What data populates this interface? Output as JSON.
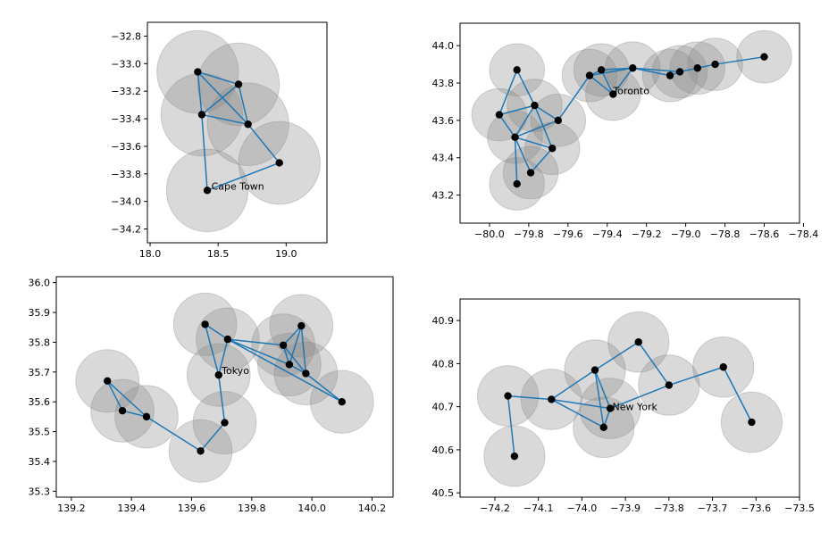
{
  "chart_data": [
    {
      "type": "scatter",
      "annotation": "Cape Town",
      "xticks": [
        "18.0",
        "18.5",
        "19.0"
      ],
      "yticks": [
        "−32.8",
        "−33.0",
        "−33.2",
        "−33.4",
        "−33.6",
        "−33.8",
        "−34.0",
        "−34.2"
      ],
      "xlim": [
        17.98,
        19.3
      ],
      "ylim": [
        -34.3,
        -32.7
      ],
      "xtick_values": [
        18.0,
        18.5,
        19.0
      ],
      "ytick_values": [
        -32.8,
        -33.0,
        -33.2,
        -33.4,
        -33.6,
        -33.8,
        -34.0,
        -34.2
      ],
      "radius": 0.3,
      "annotation_pos": [
        18.45,
        -33.89
      ],
      "points": [
        {
          "x": 18.35,
          "y": -33.06
        },
        {
          "x": 18.65,
          "y": -33.15
        },
        {
          "x": 18.38,
          "y": -33.37
        },
        {
          "x": 18.72,
          "y": -33.44
        },
        {
          "x": 18.95,
          "y": -33.72
        },
        {
          "x": 18.42,
          "y": -33.92
        }
      ],
      "edges": [
        [
          0,
          1
        ],
        [
          0,
          2
        ],
        [
          0,
          3
        ],
        [
          1,
          2
        ],
        [
          1,
          3
        ],
        [
          2,
          3
        ],
        [
          2,
          5
        ],
        [
          3,
          4
        ],
        [
          4,
          5
        ]
      ]
    },
    {
      "type": "scatter",
      "annotation": "Toronto",
      "xticks": [
        "−80.0",
        "−79.8",
        "−79.6",
        "−79.4",
        "−79.2",
        "−79.0",
        "−78.8",
        "−78.6",
        "−78.4"
      ],
      "yticks": [
        "43.2",
        "43.4",
        "43.6",
        "43.8",
        "44.0"
      ],
      "xlim": [
        -80.15,
        -78.42
      ],
      "ylim": [
        43.05,
        44.12
      ],
      "xtick_values": [
        -80.0,
        -79.8,
        -79.6,
        -79.4,
        -79.2,
        -79.0,
        -78.8,
        -78.6,
        -78.4
      ],
      "ytick_values": [
        43.2,
        43.4,
        43.6,
        43.8,
        44.0
      ],
      "radius": 0.14,
      "annotation_pos": [
        -79.37,
        43.76
      ],
      "points": [
        {
          "x": -79.86,
          "y": 43.87
        },
        {
          "x": -79.95,
          "y": 43.63
        },
        {
          "x": -79.77,
          "y": 43.68
        },
        {
          "x": -79.65,
          "y": 43.6
        },
        {
          "x": -79.87,
          "y": 43.51
        },
        {
          "x": -79.68,
          "y": 43.45
        },
        {
          "x": -79.79,
          "y": 43.32
        },
        {
          "x": -79.86,
          "y": 43.26
        },
        {
          "x": -79.49,
          "y": 43.84
        },
        {
          "x": -79.43,
          "y": 43.87
        },
        {
          "x": -79.37,
          "y": 43.74
        },
        {
          "x": -79.27,
          "y": 43.88
        },
        {
          "x": -79.08,
          "y": 43.84
        },
        {
          "x": -79.03,
          "y": 43.86
        },
        {
          "x": -78.94,
          "y": 43.88
        },
        {
          "x": -78.85,
          "y": 43.9
        },
        {
          "x": -78.6,
          "y": 43.94
        }
      ],
      "edges": [
        [
          0,
          1
        ],
        [
          0,
          2
        ],
        [
          1,
          2
        ],
        [
          1,
          4
        ],
        [
          2,
          4
        ],
        [
          2,
          3
        ],
        [
          2,
          5
        ],
        [
          4,
          3
        ],
        [
          4,
          5
        ],
        [
          4,
          6
        ],
        [
          4,
          7
        ],
        [
          5,
          6
        ],
        [
          3,
          8
        ],
        [
          8,
          9
        ],
        [
          8,
          10
        ],
        [
          8,
          11
        ],
        [
          9,
          10
        ],
        [
          9,
          11
        ],
        [
          10,
          11
        ],
        [
          11,
          12
        ],
        [
          11,
          13
        ],
        [
          12,
          13
        ],
        [
          13,
          14
        ],
        [
          14,
          15
        ],
        [
          15,
          16
        ]
      ]
    },
    {
      "type": "scatter",
      "annotation": "Tokyo",
      "xticks": [
        "139.2",
        "139.4",
        "139.6",
        "139.8",
        "140.0",
        "140.2"
      ],
      "yticks": [
        "35.3",
        "35.4",
        "35.5",
        "35.6",
        "35.7",
        "35.8",
        "35.9",
        "36.0"
      ],
      "xlim": [
        139.15,
        140.27
      ],
      "ylim": [
        35.28,
        36.02
      ],
      "xtick_values": [
        139.2,
        139.4,
        139.6,
        139.8,
        140.0,
        140.2
      ],
      "ytick_values": [
        35.3,
        35.4,
        35.5,
        35.6,
        35.7,
        35.8,
        35.9,
        36.0
      ],
      "radius": 0.105,
      "annotation_pos": [
        139.7,
        35.705
      ],
      "points": [
        {
          "x": 139.32,
          "y": 35.67
        },
        {
          "x": 139.37,
          "y": 35.57
        },
        {
          "x": 139.45,
          "y": 35.55
        },
        {
          "x": 139.63,
          "y": 35.435
        },
        {
          "x": 139.71,
          "y": 35.53
        },
        {
          "x": 139.69,
          "y": 35.69
        },
        {
          "x": 139.645,
          "y": 35.86
        },
        {
          "x": 139.72,
          "y": 35.81
        },
        {
          "x": 139.905,
          "y": 35.79
        },
        {
          "x": 139.925,
          "y": 35.725
        },
        {
          "x": 139.965,
          "y": 35.855
        },
        {
          "x": 139.98,
          "y": 35.695
        },
        {
          "x": 140.1,
          "y": 35.6
        }
      ],
      "edges": [
        [
          0,
          1
        ],
        [
          0,
          2
        ],
        [
          1,
          2
        ],
        [
          2,
          3
        ],
        [
          3,
          4
        ],
        [
          4,
          5
        ],
        [
          5,
          6
        ],
        [
          5,
          7
        ],
        [
          6,
          7
        ],
        [
          7,
          8
        ],
        [
          7,
          9
        ],
        [
          7,
          12
        ],
        [
          8,
          9
        ],
        [
          8,
          10
        ],
        [
          8,
          11
        ],
        [
          9,
          10
        ],
        [
          9,
          11
        ],
        [
          10,
          11
        ],
        [
          11,
          12
        ]
      ]
    },
    {
      "type": "scatter",
      "annotation": "New York",
      "xticks": [
        "−74.2",
        "−74.1",
        "−74.0",
        "−73.9",
        "−73.8",
        "−73.7",
        "−73.6",
        "−73.5"
      ],
      "yticks": [
        "40.5",
        "40.6",
        "40.7",
        "40.8",
        "40.9"
      ],
      "xlim": [
        -74.28,
        -73.5
      ],
      "ylim": [
        40.49,
        40.95
      ],
      "xtick_values": [
        -74.2,
        -74.1,
        -74.0,
        -73.9,
        -73.8,
        -73.7,
        -73.6,
        -73.5
      ],
      "ytick_values": [
        40.5,
        40.6,
        40.7,
        40.8,
        40.9
      ],
      "radius": 0.07,
      "annotation_pos": [
        -73.93,
        40.7
      ],
      "points": [
        {
          "x": -74.17,
          "y": 40.725
        },
        {
          "x": -74.155,
          "y": 40.585
        },
        {
          "x": -74.07,
          "y": 40.717
        },
        {
          "x": -73.97,
          "y": 40.785
        },
        {
          "x": -73.95,
          "y": 40.652
        },
        {
          "x": -73.935,
          "y": 40.696
        },
        {
          "x": -73.87,
          "y": 40.85
        },
        {
          "x": -73.8,
          "y": 40.75
        },
        {
          "x": -73.675,
          "y": 40.792
        },
        {
          "x": -73.61,
          "y": 40.664
        }
      ],
      "edges": [
        [
          0,
          1
        ],
        [
          0,
          2
        ],
        [
          2,
          3
        ],
        [
          2,
          4
        ],
        [
          2,
          5
        ],
        [
          3,
          4
        ],
        [
          3,
          5
        ],
        [
          3,
          6
        ],
        [
          4,
          5
        ],
        [
          5,
          7
        ],
        [
          6,
          7
        ],
        [
          7,
          8
        ],
        [
          8,
          9
        ]
      ]
    }
  ]
}
